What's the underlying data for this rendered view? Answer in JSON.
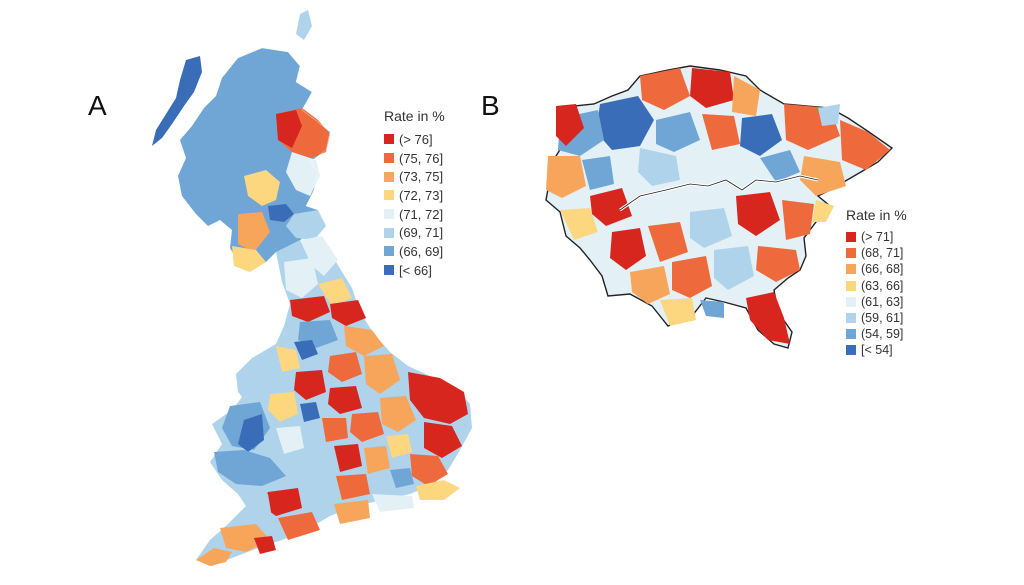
{
  "panels": {
    "a": {
      "label": "A"
    },
    "b": {
      "label": "B"
    }
  },
  "legend_a": {
    "title": "Rate in %",
    "items": [
      {
        "label": "(> 76]",
        "color": "#d7261e"
      },
      {
        "label": "(75, 76]",
        "color": "#ee6a3c"
      },
      {
        "label": "(73, 75]",
        "color": "#f7a55a"
      },
      {
        "label": "(72, 73]",
        "color": "#fcd77f"
      },
      {
        "label": "(71, 72]",
        "color": "#e3f1f7"
      },
      {
        "label": "(69, 71]",
        "color": "#aed3ea"
      },
      {
        "label": "(66, 69]",
        "color": "#6fa6d6"
      },
      {
        "label": "[< 66]",
        "color": "#3a6db8"
      }
    ]
  },
  "legend_b": {
    "title": "Rate in %",
    "items": [
      {
        "label": "(> 71]",
        "color": "#d7261e"
      },
      {
        "label": "(68, 71]",
        "color": "#ee6a3c"
      },
      {
        "label": "(66, 68]",
        "color": "#f7a55a"
      },
      {
        "label": "(63, 66]",
        "color": "#fcd77f"
      },
      {
        "label": "(61, 63]",
        "color": "#e3f1f7"
      },
      {
        "label": "(59, 61]",
        "color": "#aed3ea"
      },
      {
        "label": "(54, 59]",
        "color": "#6fa6d6"
      },
      {
        "label": "[< 54]",
        "color": "#3a6db8"
      }
    ]
  }
}
